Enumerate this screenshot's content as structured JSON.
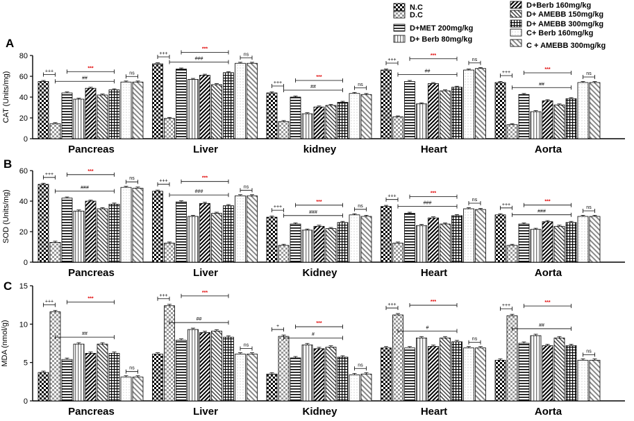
{
  "legend": {
    "items": [
      {
        "label": "N.C",
        "pattern": "p-check"
      },
      {
        "label": "D.C",
        "pattern": "p-checklight"
      },
      {
        "label": "D+MET 200mg/kg",
        "pattern": "p-hlines"
      },
      {
        "label": "D+ Berb 80mg/kg",
        "pattern": "p-vlines"
      },
      {
        "label": "D+Berb 160mg/kg",
        "pattern": "p-diag"
      },
      {
        "label": "D+ AMEBB 150mg/kg",
        "pattern": "p-diagr"
      },
      {
        "label": "D+ AMEBB 300mg/kg",
        "pattern": "p-grid"
      },
      {
        "label": "C+ Berb 160mg/kg",
        "pattern": "p-dots"
      },
      {
        "label": "C + AMEBB 300mg/kg",
        "pattern": "p-diaglight"
      }
    ]
  },
  "colors": {
    "bar_stroke": "#000000",
    "sig_red": "#e00000",
    "axis": "#000000"
  },
  "chart_data": [
    {
      "panel_label": "A",
      "type": "bar",
      "ylabel": "CAT (Units/mg)",
      "ylim": [
        0,
        80
      ],
      "yticks": [
        "0",
        "20",
        "40",
        "60",
        "80"
      ],
      "categories": [
        "Pancreas",
        "Liver",
        "kidney",
        "Heart",
        "Aorta"
      ],
      "series_values": [
        [
          55,
          14.5,
          44,
          38,
          48.5,
          42,
          47,
          54.5,
          54.5
        ],
        [
          72,
          19.5,
          67,
          57,
          61,
          52,
          63.5,
          72.5,
          72.5
        ],
        [
          44,
          16.5,
          40,
          24,
          30.5,
          32,
          35,
          43.5,
          42.5
        ],
        [
          66,
          21,
          55,
          33.5,
          53,
          46,
          49.5,
          66,
          67.5
        ],
        [
          54,
          13.5,
          42.5,
          26,
          36.5,
          32.5,
          38.5,
          54,
          54
        ]
      ],
      "annotations": [
        {
          "plus": "+++",
          "hash": "##",
          "star": "***",
          "ns": "ns"
        },
        {
          "plus": "+++",
          "hash": "###",
          "star": "***",
          "ns": "ns"
        },
        {
          "plus": "+++",
          "hash": "##",
          "star": "***",
          "ns": "ns"
        },
        {
          "plus": "+++",
          "hash": "##",
          "star": "***",
          "ns": "ns"
        },
        {
          "plus": "+++",
          "hash": "##",
          "star": "***",
          "ns": "ns"
        }
      ]
    },
    {
      "panel_label": "B",
      "type": "bar",
      "ylabel": "SOD (Units/mg)",
      "ylim": [
        0,
        60
      ],
      "yticks": [
        "0",
        "20",
        "40",
        "60"
      ],
      "categories": [
        "Pancreas",
        "Liver",
        "Kidney",
        "Heart",
        "Aorta"
      ],
      "series_values": [
        [
          51,
          13,
          42,
          33.5,
          40,
          35,
          38,
          49,
          48.5
        ],
        [
          46.5,
          12.5,
          39.5,
          30,
          38.5,
          32,
          37,
          43.5,
          43.5
        ],
        [
          29.5,
          11,
          25,
          21,
          23.5,
          22,
          26,
          31,
          30
        ],
        [
          36.5,
          12.5,
          32,
          24,
          29,
          25,
          30.5,
          35,
          34.5
        ],
        [
          31,
          11,
          25,
          21.5,
          26.5,
          23.5,
          26,
          30,
          30
        ]
      ],
      "annotations": [
        {
          "plus": "+++",
          "hash": "###",
          "star": "***",
          "ns": "ns"
        },
        {
          "plus": "+++",
          "hash": "###",
          "star": "***",
          "ns": "ns"
        },
        {
          "plus": "+++",
          "hash": "###",
          "star": "***",
          "ns": "ns"
        },
        {
          "plus": "+++",
          "hash": "###",
          "star": "***",
          "ns": "ns"
        },
        {
          "plus": "+++",
          "hash": "###",
          "star": "***",
          "ns": "ns"
        }
      ]
    },
    {
      "panel_label": "C",
      "type": "bar",
      "ylabel": "MDA (nmol/g)",
      "ylim": [
        0,
        15
      ],
      "yticks": [
        "0",
        "5",
        "10",
        "15"
      ],
      "categories": [
        "Pancreas",
        "Liver",
        "Kidney",
        "Heart",
        "Aorta"
      ],
      "series_values": [
        [
          3.7,
          11.6,
          5.4,
          7.4,
          6.2,
          7.4,
          6.2,
          3.1,
          3.1
        ],
        [
          6.1,
          12.4,
          7.9,
          9.3,
          8.9,
          9.1,
          8.3,
          6.1,
          6.1
        ],
        [
          3.5,
          8.4,
          5.6,
          7.3,
          6.8,
          7.0,
          5.7,
          3.4,
          3.5
        ],
        [
          6.9,
          11.2,
          6.9,
          8.2,
          7.1,
          8.2,
          7.7,
          6.9,
          6.9
        ],
        [
          5.3,
          11.1,
          7.5,
          8.5,
          7.2,
          8.2,
          7.2,
          5.3,
          5.3
        ]
      ],
      "annotations": [
        {
          "plus": "+++",
          "hash": "##",
          "star": "***",
          "ns": "ns"
        },
        {
          "plus": "+++",
          "hash": "##",
          "star": "***",
          "ns": "ns"
        },
        {
          "plus": "+",
          "hash": "#",
          "star": "***",
          "ns": "ns"
        },
        {
          "plus": "+++",
          "hash": "#",
          "star": "***",
          "ns": "ns"
        },
        {
          "plus": "+++",
          "hash": "##",
          "star": "***",
          "ns": "ns"
        }
      ]
    }
  ]
}
